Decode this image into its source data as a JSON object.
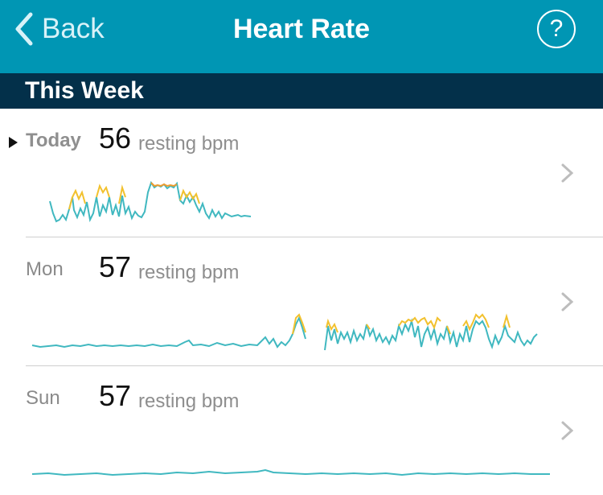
{
  "nav": {
    "back_label": "Back",
    "title": "Heart Rate",
    "help_label": "?"
  },
  "section": {
    "label": "This Week"
  },
  "colors": {
    "topbar": "#0096b4",
    "section": "#03304a",
    "resting": "#40b8c0",
    "fatburn": "#f2c12e",
    "cardio": "#ef9a2b"
  },
  "days": [
    {
      "label": "Today",
      "resting_bpm": "56",
      "unit": "resting bpm",
      "selected": true
    },
    {
      "label": "Mon",
      "resting_bpm": "57",
      "unit": "resting bpm",
      "selected": false
    },
    {
      "label": "Sun",
      "resting_bpm": "57",
      "unit": "resting bpm",
      "selected": false
    }
  ]
}
